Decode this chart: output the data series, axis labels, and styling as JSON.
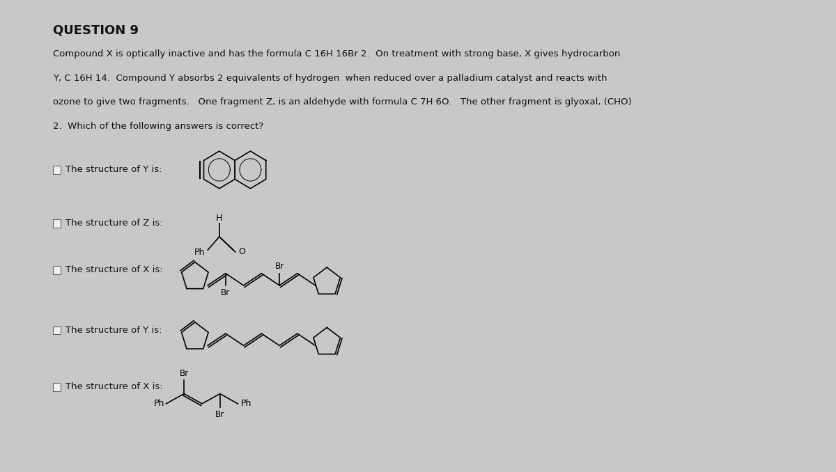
{
  "title": "QUESTION 9",
  "bg_color": "#c8c8c8",
  "panel_color": "#e8e8e6",
  "text_color": "#111111",
  "body_lines": [
    "Compound X is optically inactive and has the formula C 16H 16Br 2.  On treatment with strong base, X gives hydrocarbon",
    "Y, C 16H 14.  Compound Y absorbs 2 equivalents of hydrogen  when reduced over a palladium catalyst and reacts with",
    "ozone to give two fragments.   One fragment Z, is an aldehyde with formula C 7H 6O.   The other fragment is glyoxal, (CHO)",
    "2.  Which of the following answers is correct?"
  ],
  "options": [
    "The structure of Y is:",
    "The structure of Z is:",
    "The structure of X is:",
    "The structure of Y is:",
    "The structure of X is:"
  ]
}
